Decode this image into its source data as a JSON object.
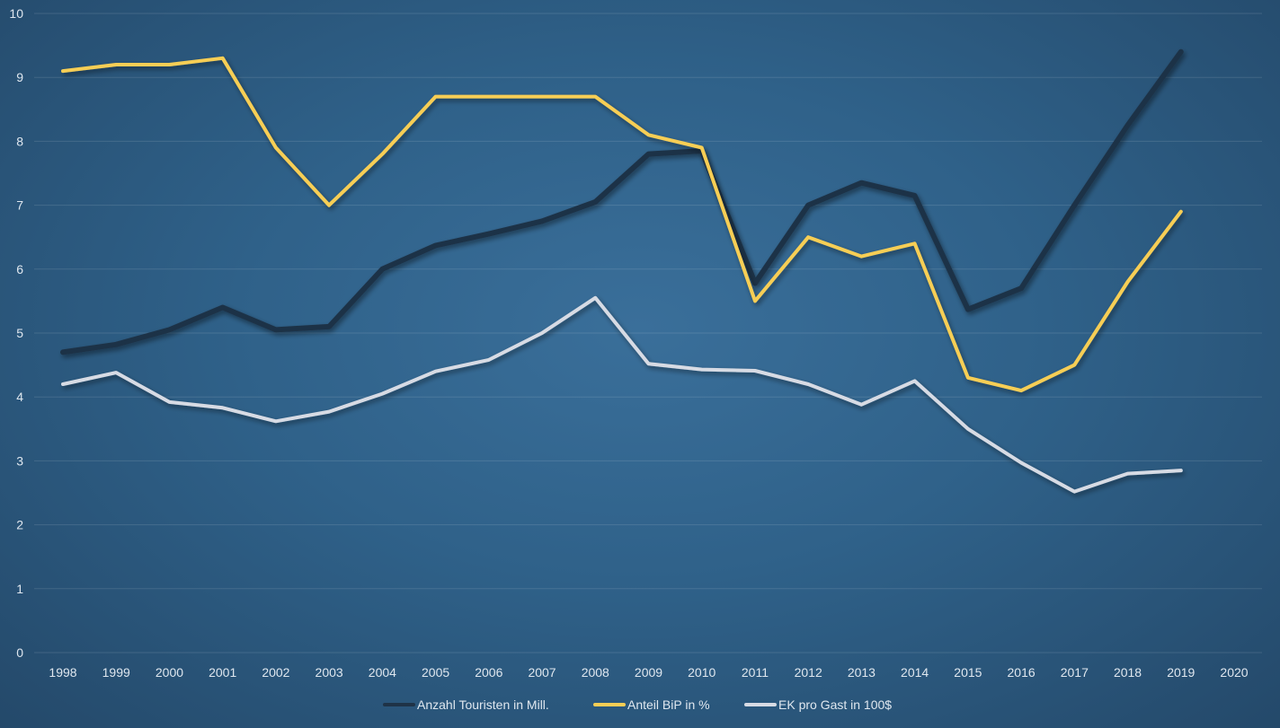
{
  "chart_data": {
    "type": "line",
    "title": "",
    "xlabel": "",
    "ylabel": "",
    "x": [
      "1998",
      "1999",
      "2000",
      "2001",
      "2002",
      "2003",
      "2004",
      "2005",
      "2006",
      "2007",
      "2008",
      "2009",
      "2010",
      "2011",
      "2012",
      "2013",
      "2014",
      "2015",
      "2016",
      "2017",
      "2018",
      "2019",
      "2020"
    ],
    "ylim": [
      0,
      10
    ],
    "yticks": [
      "0",
      "1",
      "2",
      "3",
      "4",
      "5",
      "6",
      "7",
      "8",
      "9",
      "10"
    ],
    "grid": true,
    "legend": "bottom-center",
    "series": [
      {
        "name": "Anzahl Touristen in Mill.",
        "color": "#1f3347",
        "values": [
          4.7,
          4.82,
          5.05,
          5.4,
          5.05,
          5.1,
          6.0,
          6.37,
          6.55,
          6.75,
          7.05,
          7.8,
          7.85,
          5.78,
          7.0,
          7.35,
          7.15,
          5.37,
          5.7,
          7.0,
          8.25,
          9.4,
          null
        ]
      },
      {
        "name": "Anteil BiP in %",
        "color": "#f7ce55",
        "values": [
          9.1,
          9.2,
          9.2,
          9.3,
          7.9,
          7.0,
          7.8,
          8.7,
          8.7,
          8.7,
          8.7,
          8.1,
          7.9,
          5.5,
          6.5,
          6.2,
          6.4,
          4.3,
          4.1,
          4.5,
          5.8,
          6.9,
          null
        ]
      },
      {
        "name": "EK pro Gast in 100$",
        "color": "#d7dbe4",
        "values": [
          4.2,
          4.38,
          3.92,
          3.83,
          3.62,
          3.77,
          4.05,
          4.4,
          4.58,
          5.0,
          5.55,
          4.52,
          4.43,
          4.41,
          4.2,
          3.88,
          4.25,
          3.5,
          2.97,
          2.52,
          2.8,
          2.85,
          null
        ]
      }
    ]
  }
}
